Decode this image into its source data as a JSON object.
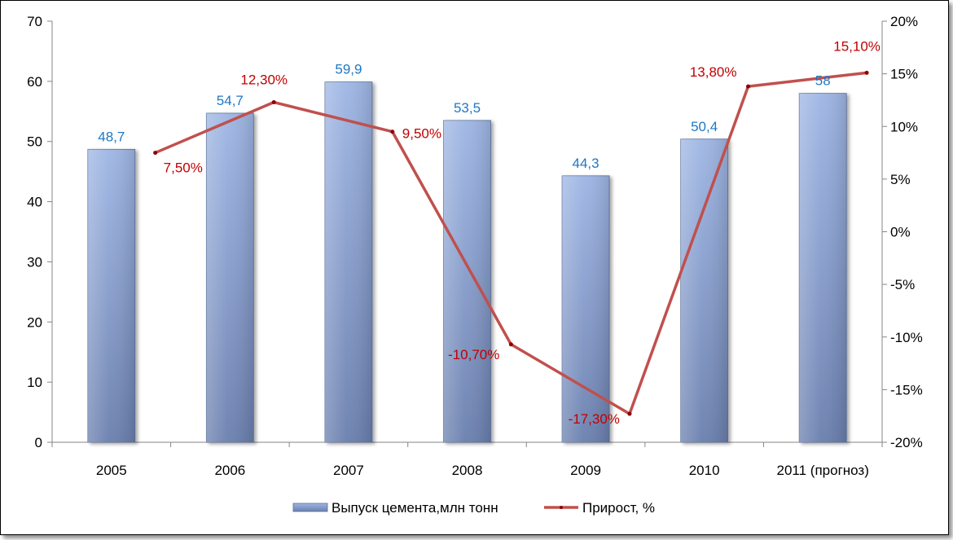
{
  "chart_data": {
    "type": "bar",
    "categories": [
      "2005",
      "2006",
      "2007",
      "2008",
      "2009",
      "2010",
      "2011 (прогноз)"
    ],
    "series": [
      {
        "name": "Выпуск цемента,млн тонн",
        "type": "bar",
        "axis": "left",
        "values": [
          48.7,
          54.7,
          59.9,
          53.5,
          44.3,
          50.4,
          58
        ],
        "labels": [
          "48,7",
          "54,7",
          "59,9",
          "53,5",
          "44,3",
          "50,4",
          "58"
        ],
        "color": "#8ea6d4"
      },
      {
        "name": "Прирост, %",
        "type": "line",
        "axis": "right",
        "values": [
          7.5,
          12.3,
          9.5,
          -10.7,
          -17.3,
          13.8,
          15.1
        ],
        "labels": [
          "7,50%",
          "12,30%",
          "9,50%",
          "-10,70%",
          "-17,30%",
          "13,80%",
          "15,10%"
        ],
        "color": "#c0504d"
      }
    ],
    "y_left": {
      "min": 0,
      "max": 70,
      "step": 10,
      "ticks": [
        "0",
        "10",
        "20",
        "30",
        "40",
        "50",
        "60",
        "70"
      ]
    },
    "y_right": {
      "min": -20,
      "max": 20,
      "step": 5,
      "ticks": [
        "-20%",
        "-15%",
        "-10%",
        "-5%",
        "0%",
        "5%",
        "10%",
        "15%",
        "20%"
      ]
    },
    "grid": false,
    "legend_position": "bottom",
    "title": "",
    "xlabel": "",
    "ylabel": ""
  }
}
